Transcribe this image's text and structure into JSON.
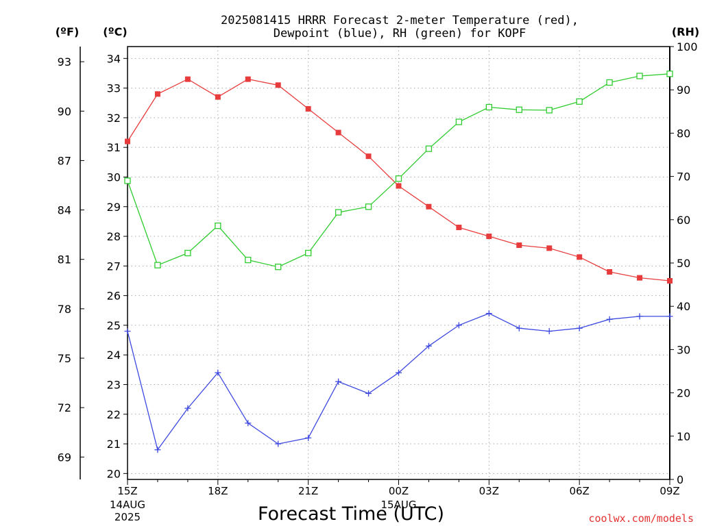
{
  "title_line1": "2025081415 HRRR Forecast 2-meter Temperature (red),",
  "title_line2": "Dewpoint (blue), RH (green) for KOPF",
  "unit_f": "(ºF)",
  "unit_c": "(ºC)",
  "unit_rh": "(RH)",
  "xlabel": "Forecast Time (UTC)",
  "credit": "coolwx.com/models",
  "colors": {
    "temperature": "#e83c3c",
    "dewpoint": "#3c48e0",
    "rh": "#2ecc2e"
  },
  "chart_data": {
    "type": "line",
    "title": "2025081415 HRRR Forecast 2-meter Temperature (red), Dewpoint (blue), RH (green) for KOPF",
    "xlabel": "Forecast Time (UTC)",
    "x_hours": [
      0,
      1,
      2,
      3,
      4,
      5,
      6,
      7,
      8,
      9,
      10,
      11,
      12,
      13,
      14,
      15,
      16,
      17,
      18
    ],
    "x_ticks": [
      {
        "hour": 0,
        "label": "15Z",
        "sub": [
          "14AUG",
          "2025"
        ]
      },
      {
        "hour": 3,
        "label": "18Z",
        "sub": []
      },
      {
        "hour": 6,
        "label": "21Z",
        "sub": []
      },
      {
        "hour": 9,
        "label": "00Z",
        "sub": [
          "15AUG"
        ]
      },
      {
        "hour": 12,
        "label": "03Z",
        "sub": []
      },
      {
        "hour": 15,
        "label": "06Z",
        "sub": []
      },
      {
        "hour": 18,
        "label": "09Z",
        "sub": []
      }
    ],
    "y_left_c": {
      "label": "(ºC)",
      "range": [
        19.8,
        34.4
      ],
      "ticks": [
        20,
        21,
        22,
        23,
        24,
        25,
        26,
        27,
        28,
        29,
        30,
        31,
        32,
        33,
        34
      ]
    },
    "y_left_f": {
      "label": "(ºF)",
      "ticks": [
        69,
        72,
        75,
        78,
        81,
        84,
        87,
        90,
        93
      ]
    },
    "y_right_rh": {
      "label": "(RH)",
      "range": [
        0,
        100
      ],
      "ticks": [
        0,
        10,
        20,
        30,
        40,
        50,
        60,
        70,
        80,
        90,
        100
      ]
    },
    "grid": true,
    "series": [
      {
        "key": "temperature",
        "axis": "c",
        "marker": "filled-square",
        "values": [
          31.2,
          32.8,
          33.3,
          32.7,
          33.3,
          33.1,
          32.3,
          31.5,
          30.7,
          29.7,
          29.0,
          28.3,
          28.0,
          27.7,
          27.6,
          27.3,
          26.8,
          26.6,
          26.5
        ]
      },
      {
        "key": "dewpoint",
        "axis": "c",
        "marker": "plus",
        "values": [
          24.8,
          20.8,
          22.2,
          23.4,
          21.7,
          21.0,
          21.2,
          23.1,
          22.7,
          23.4,
          24.3,
          25.0,
          25.4,
          24.9,
          24.8,
          24.9,
          25.2,
          25.3,
          25.3
        ]
      },
      {
        "key": "rh",
        "axis": "rh",
        "marker": "open-square",
        "values": [
          69,
          49.5,
          52.3,
          58.6,
          50.7,
          49.1,
          52.3,
          61.7,
          63.0,
          69.5,
          76.4,
          82.6,
          86.0,
          85.4,
          85.3,
          87.3,
          91.7,
          93.2,
          93.7
        ]
      }
    ]
  }
}
